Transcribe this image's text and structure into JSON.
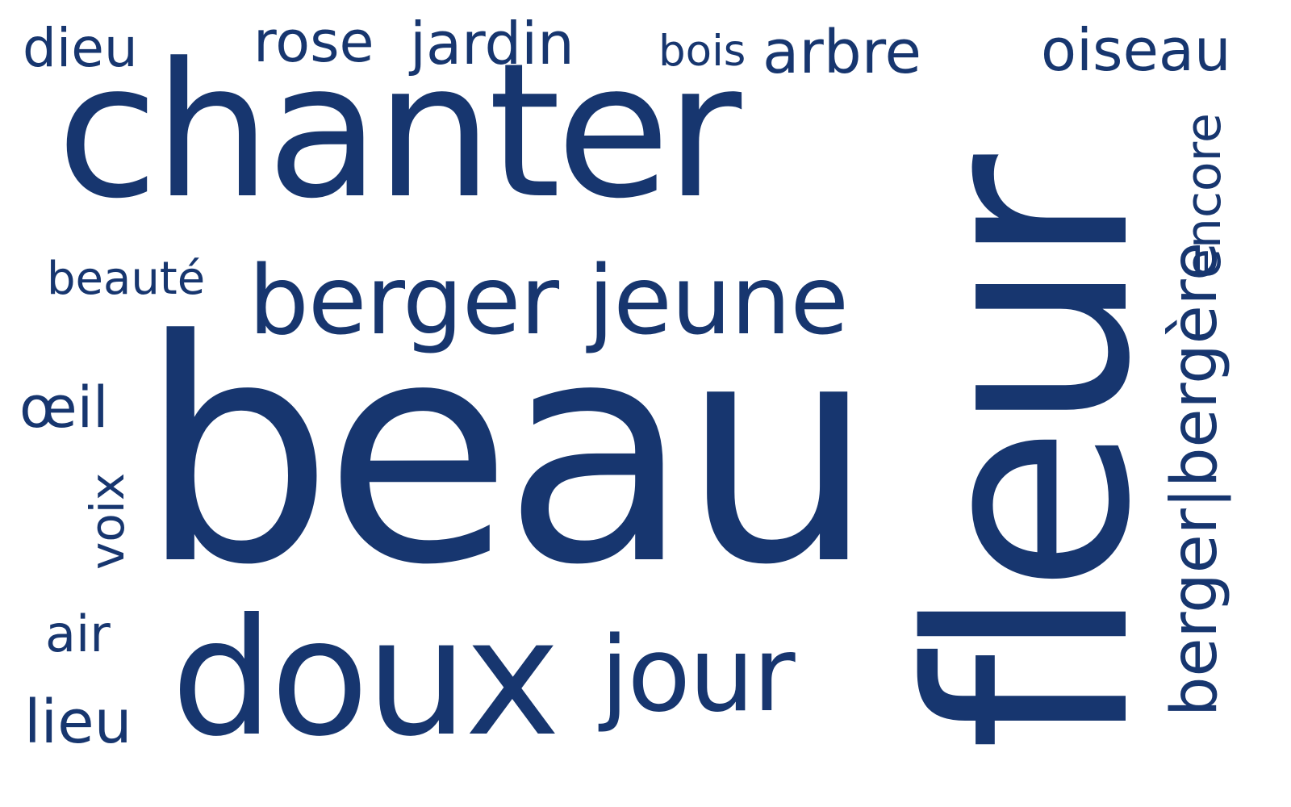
{
  "words": {
    "dieu": "dieu",
    "rose": "rose",
    "jardin": "jardin",
    "bois": "bois",
    "arbre": "arbre",
    "oiseau": "oiseau",
    "chanter": "chanter",
    "beaute": "beauté",
    "berger_jeune": "berger jeune",
    "oeil": "œil",
    "voix": "voix",
    "beau": "beau",
    "air": "air",
    "lieu": "lieu",
    "doux": "doux",
    "jour": "jour",
    "fleur": "fleur",
    "encore": "encore",
    "berger_bergere": "berger|bergère"
  },
  "colors": {
    "text": "#17366f",
    "background": "#ffffff"
  }
}
